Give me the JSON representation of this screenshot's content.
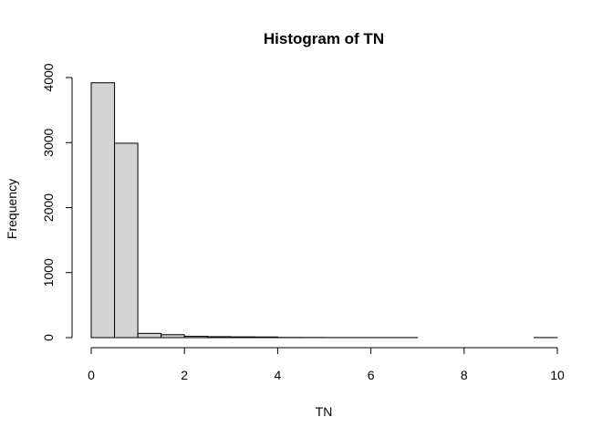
{
  "chart_data": {
    "type": "bar",
    "title": "Histogram of TN",
    "xlabel": "TN",
    "ylabel": "Frequency",
    "bin_width": 0.5,
    "bins": [
      {
        "x0": 0.0,
        "x1": 0.5,
        "count": 3920
      },
      {
        "x0": 0.5,
        "x1": 1.0,
        "count": 2990
      },
      {
        "x0": 1.0,
        "x1": 1.5,
        "count": 65
      },
      {
        "x0": 1.5,
        "x1": 2.0,
        "count": 45
      },
      {
        "x0": 2.0,
        "x1": 2.5,
        "count": 20
      },
      {
        "x0": 2.5,
        "x1": 3.0,
        "count": 15
      },
      {
        "x0": 3.0,
        "x1": 3.5,
        "count": 12
      },
      {
        "x0": 3.5,
        "x1": 4.0,
        "count": 10
      },
      {
        "x0": 4.0,
        "x1": 4.5,
        "count": 3
      },
      {
        "x0": 4.5,
        "x1": 5.0,
        "count": 2
      },
      {
        "x0": 5.0,
        "x1": 5.5,
        "count": 1
      },
      {
        "x0": 5.5,
        "x1": 6.0,
        "count": 1
      },
      {
        "x0": 6.0,
        "x1": 6.5,
        "count": 1
      },
      {
        "x0": 6.5,
        "x1": 7.0,
        "count": 1
      },
      {
        "x0": 7.0,
        "x1": 7.5,
        "count": 0
      },
      {
        "x0": 7.5,
        "x1": 8.0,
        "count": 0
      },
      {
        "x0": 8.0,
        "x1": 8.5,
        "count": 0
      },
      {
        "x0": 8.5,
        "x1": 9.0,
        "count": 0
      },
      {
        "x0": 9.0,
        "x1": 9.5,
        "count": 0
      },
      {
        "x0": 9.5,
        "x1": 10.0,
        "count": 1
      }
    ],
    "xlim": [
      0,
      10
    ],
    "ylim": [
      0,
      4000
    ],
    "xticks": [
      0,
      2,
      4,
      6,
      8,
      10
    ],
    "yticks": [
      0,
      1000,
      2000,
      3000,
      4000
    ],
    "bar_color": "#d3d3d3",
    "grid": false,
    "legend": "none"
  }
}
